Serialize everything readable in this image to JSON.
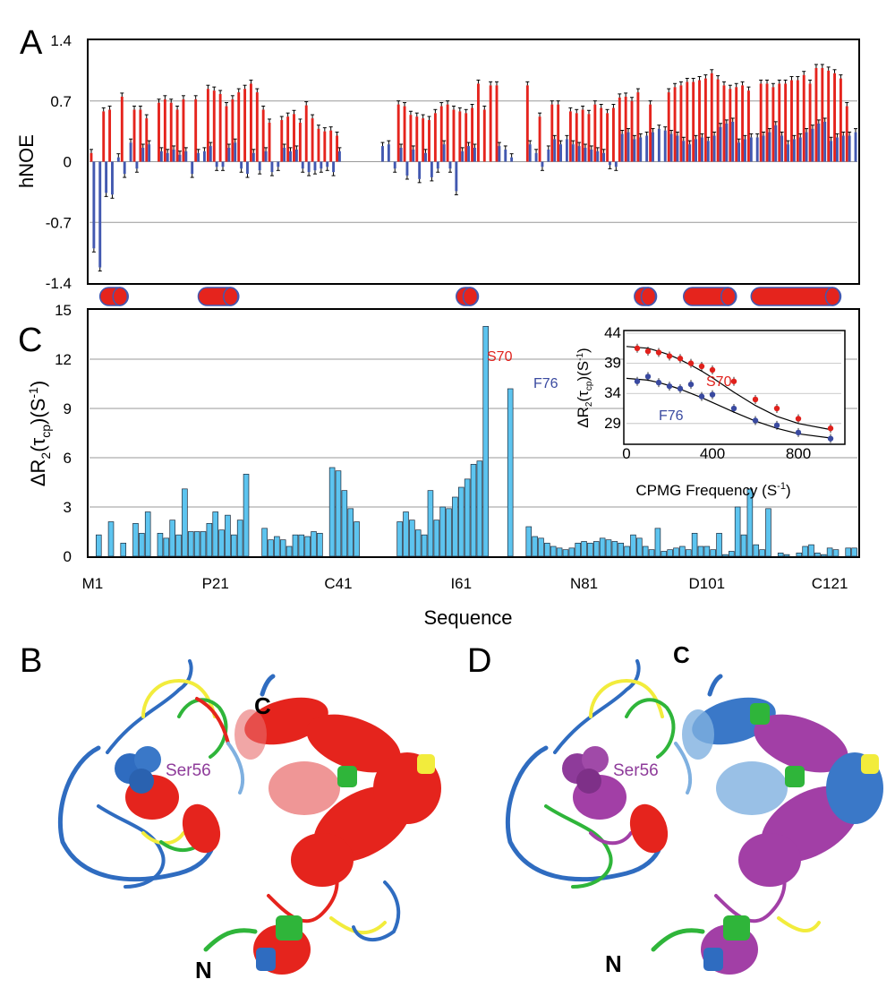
{
  "figure": {
    "panel_letters": [
      "A",
      "B",
      "C",
      "D"
    ],
    "colors": {
      "red": "#e5241d",
      "blue": "#4258b0",
      "cyan": "#5dc4ef",
      "green": "#2fb53a",
      "yellow": "#f2ec3c",
      "purple": "#a23fa6",
      "light_blue": "#7fb0e0"
    }
  },
  "chart_data": [
    {
      "type": "bar",
      "panel": "A",
      "ylabel": "hNOE",
      "ylim": [
        -1.4,
        1.4
      ],
      "yticks": [
        "1.4",
        "0.7",
        "0",
        "-0.7",
        "-1.4"
      ],
      "ytick_values": [
        1.4,
        0.7,
        0,
        -0.7,
        -1.4
      ],
      "grid": true,
      "n_residues": 125,
      "series": [
        {
          "color": "#e5241d",
          "values": [
            0.1,
            null,
            0.58,
            0.6,
            null,
            0.75,
            null,
            0.6,
            0.6,
            0.5,
            null,
            0.68,
            0.72,
            0.68,
            0.6,
            0.72,
            null,
            0.72,
            null,
            0.84,
            0.82,
            0.78,
            0.64,
            0.72,
            0.8,
            0.84,
            0.9,
            0.8,
            0.6,
            0.45,
            null,
            0.48,
            0.52,
            0.55,
            0.45,
            0.65,
            0.5,
            0.38,
            0.35,
            0.36,
            0.3,
            null,
            null,
            null,
            null,
            null,
            null,
            null,
            null,
            null,
            0.66,
            0.64,
            0.54,
            0.52,
            0.5,
            0.48,
            0.56,
            0.64,
            0.66,
            0.6,
            0.58,
            0.56,
            0.62,
            0.9,
            0.6,
            0.88,
            0.88,
            null,
            null,
            null,
            null,
            0.88,
            null,
            0.52,
            null,
            0.66,
            0.66,
            null,
            0.58,
            0.56,
            0.6,
            0.55,
            0.66,
            0.62,
            0.56,
            0.62,
            0.74,
            0.75,
            0.7,
            0.8,
            null,
            0.66,
            null,
            null,
            0.8,
            0.86,
            0.88,
            0.92,
            0.92,
            0.94,
            0.96,
            1.02,
            0.95,
            0.88,
            0.84,
            0.86,
            0.88,
            0.82,
            null,
            0.9,
            0.9,
            0.86,
            0.9,
            0.9,
            0.94,
            0.94,
            1.0,
            0.9,
            1.08,
            1.08,
            1.05,
            1.02,
            0.96,
            0.64,
            null
          ]
        },
        {
          "color": "#4258b0",
          "values": [
            -1.0,
            -1.22,
            -0.36,
            -0.38,
            0.05,
            -0.14,
            0.22,
            -0.08,
            0.16,
            0.2,
            null,
            0.12,
            0.1,
            0.14,
            0.08,
            0.12,
            -0.14,
            0.1,
            0.12,
            0.18,
            -0.06,
            -0.06,
            0.16,
            0.22,
            -0.08,
            -0.14,
            0.1,
            -0.1,
            0.12,
            -0.12,
            -0.06,
            0.16,
            0.12,
            0.14,
            -0.08,
            -0.12,
            -0.1,
            -0.08,
            -0.06,
            -0.12,
            0.12,
            null,
            null,
            null,
            null,
            null,
            null,
            0.18,
            0.2,
            -0.08,
            0.16,
            -0.16,
            0.14,
            -0.2,
            0.1,
            -0.18,
            -0.08,
            0.2,
            -0.08,
            -0.34,
            0.12,
            0.18,
            0.16,
            null,
            null,
            null,
            0.18,
            0.14,
            0.05,
            null,
            null,
            0.2,
            0.1,
            -0.06,
            0.14,
            0.26,
            0.2,
            0.26,
            0.2,
            0.18,
            0.16,
            0.14,
            0.12,
            0.1,
            -0.04,
            -0.06,
            0.32,
            0.34,
            0.26,
            0.28,
            0.3,
            0.34,
            0.38,
            0.36,
            0.32,
            0.3,
            0.24,
            0.2,
            0.26,
            0.28,
            0.24,
            0.3,
            0.4,
            0.44,
            0.46,
            0.22,
            0.26,
            0.28,
            0.28,
            0.3,
            0.34,
            0.42,
            0.3,
            0.2,
            0.26,
            0.28,
            0.34,
            0.38,
            0.44,
            0.46,
            0.24,
            0.28,
            0.3,
            0.3,
            0.34
          ]
        }
      ],
      "secondary_structure": [
        {
          "start": 2,
          "end": 5
        },
        {
          "start": 18,
          "end": 23
        },
        {
          "start": 60,
          "end": 62
        },
        {
          "start": 89,
          "end": 91
        },
        {
          "start": 97,
          "end": 104
        },
        {
          "start": 108,
          "end": 121
        }
      ]
    },
    {
      "type": "bar",
      "panel": "C",
      "ylabel": "ΔR2(τcp)(S-1)",
      "ylabel_parts": {
        "main": "ΔR",
        "sub2": "2",
        "paren_open": "(τ",
        "sub_cp": "cp",
        "paren_close": ")(S",
        "sup": "-1",
        "end": ")"
      },
      "xlabel": "Sequence",
      "ylim": [
        0,
        15
      ],
      "yticks": [
        "0",
        "3",
        "6",
        "9",
        "12",
        "15"
      ],
      "ytick_values": [
        0,
        3,
        6,
        9,
        12,
        15
      ],
      "xtick_labels": [
        "M1",
        "P21",
        "C41",
        "I61",
        "N81",
        "D101",
        "C121"
      ],
      "xtick_residues": [
        1,
        21,
        41,
        61,
        81,
        101,
        121
      ],
      "grid": true,
      "color": "#5dc4ef",
      "n_residues": 125,
      "values": [
        0,
        1.3,
        0,
        2.1,
        0,
        0.8,
        0,
        2.0,
        1.4,
        2.7,
        0,
        1.4,
        1.1,
        2.2,
        1.3,
        4.1,
        1.5,
        1.5,
        1.5,
        2.0,
        2.7,
        1.6,
        2.5,
        1.3,
        2.2,
        5.0,
        0,
        0,
        1.7,
        1.0,
        1.2,
        1.0,
        0.6,
        1.3,
        1.3,
        1.2,
        1.5,
        1.4,
        0,
        5.4,
        5.2,
        4.0,
        2.9,
        2.1,
        0,
        0,
        0,
        0,
        0,
        0,
        2.1,
        2.7,
        2.2,
        1.6,
        1.3,
        4.0,
        2.2,
        3.0,
        2.9,
        3.6,
        4.2,
        4.7,
        5.6,
        5.8,
        14.0,
        0,
        0,
        0,
        10.2,
        0,
        0,
        1.8,
        1.2,
        1.1,
        0.8,
        0.6,
        0.5,
        0.4,
        0.5,
        0.8,
        0.9,
        0.8,
        0.9,
        1.1,
        1.0,
        0.9,
        0.8,
        0.6,
        1.3,
        1.1,
        0.6,
        0.4,
        1.7,
        0.3,
        0.4,
        0.5,
        0.6,
        0.4,
        1.4,
        0.6,
        0.6,
        0.4,
        1.4,
        0.1,
        0.3,
        3.0,
        1.3,
        4.1,
        0.7,
        0.4,
        2.9,
        0,
        0.2,
        0.1,
        0,
        0.2,
        0.6,
        0.7,
        0.2,
        0.1,
        0.5,
        0.4,
        0,
        0.5,
        0.5
      ],
      "annotations": [
        {
          "text": "S70",
          "residue": 65,
          "color": "#e0211c"
        },
        {
          "text": "F76",
          "residue": 69,
          "color": "#3a4aa0"
        }
      ]
    },
    {
      "type": "scatter",
      "panel": "C-inset",
      "xlabel": "CPMG Frequency (S-1)",
      "xlabel_parts": {
        "main": "CPMG Frequency (S",
        "sup": "-1",
        "end": ")"
      },
      "ylabel": "ΔR2(τcp)(S-1)",
      "xlim": [
        0,
        1000
      ],
      "ylim": [
        26,
        44
      ],
      "xticks": [
        "0",
        "400",
        "800"
      ],
      "xtick_values": [
        0,
        400,
        800
      ],
      "yticks": [
        "29",
        "34",
        "39",
        "44"
      ],
      "ytick_values": [
        29,
        34,
        39,
        44
      ],
      "series": [
        {
          "name": "S70",
          "color": "#e0211c",
          "x": [
            50,
            100,
            150,
            200,
            250,
            300,
            350,
            400,
            500,
            600,
            700,
            800,
            950
          ],
          "y": [
            41.5,
            41.0,
            40.8,
            40.2,
            39.8,
            39.0,
            38.5,
            37.9,
            36.0,
            33.0,
            31.5,
            29.8,
            28.2
          ],
          "fit": [
            41.8,
            41.5,
            41.0,
            40.4,
            39.6,
            38.7,
            37.7,
            36.6,
            34.2,
            32.0,
            30.2,
            29.0,
            28.0
          ]
        },
        {
          "name": "F76",
          "color": "#3a4aa0",
          "x": [
            50,
            100,
            150,
            200,
            250,
            300,
            350,
            400,
            500,
            600,
            700,
            800,
            950
          ],
          "y": [
            36.0,
            36.8,
            35.8,
            35.2,
            34.8,
            35.5,
            33.5,
            33.8,
            31.5,
            29.5,
            28.7,
            27.5,
            26.5
          ],
          "fit": [
            36.5,
            36.2,
            35.8,
            35.3,
            34.7,
            34.0,
            33.3,
            32.5,
            30.9,
            29.4,
            28.2,
            27.3,
            26.6
          ]
        }
      ],
      "fit_x": [
        0,
        100,
        150,
        200,
        250,
        300,
        350,
        400,
        500,
        600,
        700,
        800,
        950
      ]
    }
  ],
  "structures": {
    "left": {
      "n_label": "N",
      "c_label": "C",
      "residue_label": "Ser56"
    },
    "right": {
      "n_label": "N",
      "c_label": "C",
      "residue_label": "Ser56"
    }
  }
}
